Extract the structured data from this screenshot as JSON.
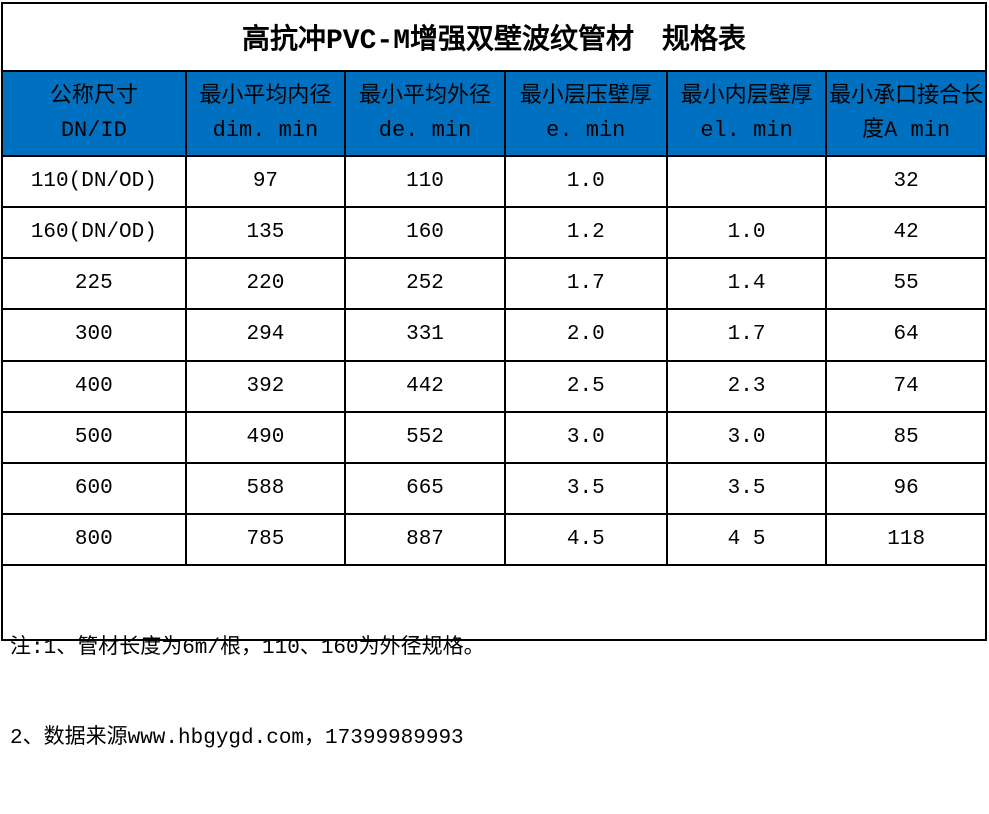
{
  "page": {
    "title": "高抗冲PVC-M增强双壁波纹管材　规格表"
  },
  "colors": {
    "header_bg": "#0070C0",
    "grid_line": "#000000",
    "text": "#000000",
    "background": "#FFFFFF"
  },
  "table": {
    "columns": [
      {
        "label": "公称尺寸",
        "sub": "DN/ID"
      },
      {
        "label": "最小平均内径",
        "sub": "dim. min"
      },
      {
        "label": "最小平均外径",
        "sub": "de. min"
      },
      {
        "label": "最小层压壁厚",
        "sub": "e. min"
      },
      {
        "label": "最小内层壁厚",
        "sub": "el. min"
      },
      {
        "label": "最小承口接合长",
        "sub": "度A min"
      }
    ],
    "rows": [
      [
        "110(DN/OD)",
        "97",
        "110",
        "1.0",
        "",
        "32"
      ],
      [
        "160(DN/OD)",
        "135",
        "160",
        "1.2",
        "1.0",
        "42"
      ],
      [
        "225",
        "220",
        "252",
        "1.7",
        "1.4",
        "55"
      ],
      [
        "300",
        "294",
        "331",
        "2.0",
        "1.7",
        "64"
      ],
      [
        "400",
        "392",
        "442",
        "2.5",
        "2.3",
        "74"
      ],
      [
        "500",
        "490",
        "552",
        "3.0",
        "3.0",
        "85"
      ],
      [
        "600",
        "588",
        "665",
        "3.5",
        "3.5",
        "96"
      ],
      [
        "800",
        "785",
        "887",
        "4.5",
        "4 5",
        "118"
      ]
    ]
  },
  "notes": {
    "line1": "注:1、管材长度为6m/根，110、160为外径规格。",
    "line2": "2、数据来源www.hbgygd.com，17399989993"
  }
}
